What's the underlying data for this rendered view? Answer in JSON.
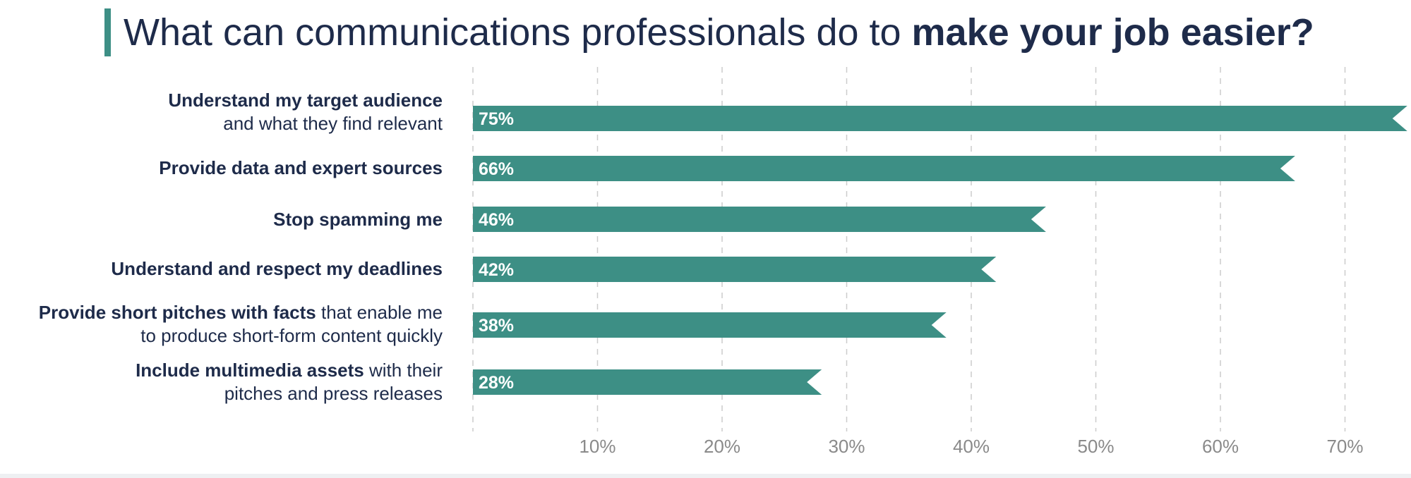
{
  "title": {
    "normal": "What can communications professionals do to ",
    "bold": "make your job easier?"
  },
  "colors": {
    "bar": "#3d8f85",
    "text": "#1e2b4a",
    "tick": "#8a8a8a",
    "grid": "#cccccc",
    "accent": "#3d8f85"
  },
  "chart_data": {
    "type": "bar",
    "orientation": "horizontal",
    "categories": [
      {
        "bold": "Understand my target audience",
        "regular": "and what they find relevant"
      },
      {
        "bold": "Provide data and expert sources",
        "regular": ""
      },
      {
        "bold": "Stop spamming me",
        "regular": ""
      },
      {
        "bold": "Understand and respect my deadlines",
        "regular": ""
      },
      {
        "bold": "Provide short pitches with facts",
        "regular": " that enable me to produce short-form content quickly"
      },
      {
        "bold": "Include multimedia assets",
        "regular": " with their pitches and press releases"
      }
    ],
    "values": [
      75,
      66,
      46,
      42,
      38,
      28
    ],
    "value_labels": [
      "75%",
      "66%",
      "46%",
      "42%",
      "38%",
      "28%"
    ],
    "x_ticks": [
      "10%",
      "20%",
      "30%",
      "40%",
      "50%",
      "60%",
      "70%"
    ],
    "xlim": [
      0,
      75
    ],
    "grid": true
  }
}
